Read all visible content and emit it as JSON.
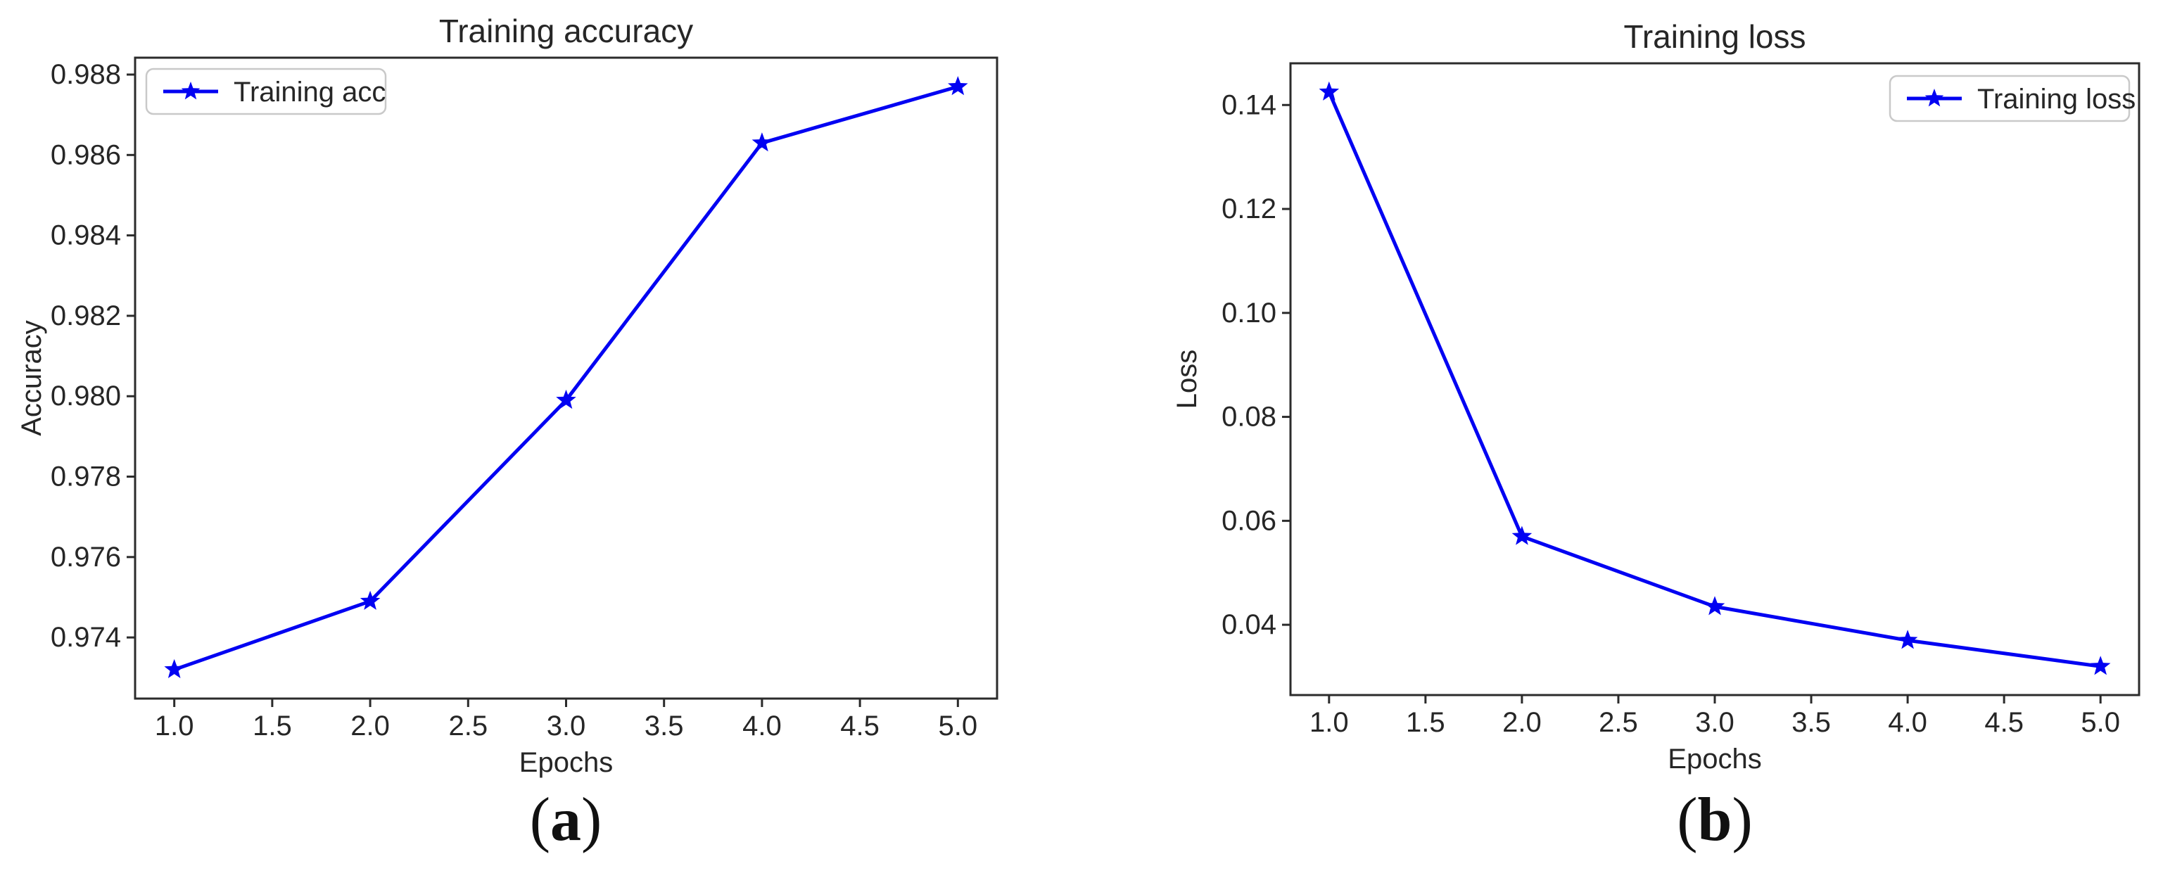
{
  "style": {
    "background": "#ffffff",
    "frame_color": "#2b2b2b",
    "text_color": "#262626",
    "legend_border_color": "#c9c9c9",
    "legend_fill_color": "#ffffff"
  },
  "chart_data": [
    {
      "type": "line",
      "title": "Training accuracy",
      "xlabel": "Epochs",
      "ylabel": "Accuracy",
      "legend": {
        "label": "Training acc",
        "position": "upper-left"
      },
      "line_color": "#0202f2",
      "marker": "star",
      "x": [
        1,
        2,
        3,
        4,
        5
      ],
      "y": [
        0.9732,
        0.9749,
        0.9799,
        0.9863,
        0.9877
      ],
      "xlim": [
        0.8,
        5.2
      ],
      "ylim": [
        0.97248,
        0.98842
      ],
      "xticks": {
        "values": [
          1.0,
          1.5,
          2.0,
          2.5,
          3.0,
          3.5,
          4.0,
          4.5,
          5.0
        ],
        "labels": [
          "1.0",
          "1.5",
          "2.0",
          "2.5",
          "3.0",
          "3.5",
          "4.0",
          "4.5",
          "5.0"
        ]
      },
      "yticks": {
        "values": [
          0.974,
          0.976,
          0.978,
          0.98,
          0.982,
          0.984,
          0.986,
          0.988
        ],
        "labels": [
          "0.974",
          "0.976",
          "0.978",
          "0.980",
          "0.982",
          "0.984",
          "0.986",
          "0.988"
        ]
      },
      "grid": false,
      "panel_label": {
        "open": "(",
        "letter": "a",
        "close": ")"
      }
    },
    {
      "type": "line",
      "title": "Training loss",
      "xlabel": "Epochs",
      "ylabel": "Loss",
      "legend": {
        "label": "Training loss",
        "position": "upper-right"
      },
      "line_color": "#0202f2",
      "marker": "star",
      "x": [
        1,
        2,
        3,
        4,
        5
      ],
      "y": [
        0.1425,
        0.057,
        0.0435,
        0.037,
        0.032
      ],
      "xlim": [
        0.8,
        5.2
      ],
      "ylim": [
        0.02648,
        0.14802
      ],
      "xticks": {
        "values": [
          1.0,
          1.5,
          2.0,
          2.5,
          3.0,
          3.5,
          4.0,
          4.5,
          5.0
        ],
        "labels": [
          "1.0",
          "1.5",
          "2.0",
          "2.5",
          "3.0",
          "3.5",
          "4.0",
          "4.5",
          "5.0"
        ]
      },
      "yticks": {
        "values": [
          0.04,
          0.06,
          0.08,
          0.1,
          0.12,
          0.14
        ],
        "labels": [
          "0.04",
          "0.06",
          "0.08",
          "0.10",
          "0.12",
          "0.14"
        ]
      },
      "grid": false,
      "panel_label": {
        "open": "(",
        "letter": "b",
        "close": ")"
      }
    }
  ]
}
